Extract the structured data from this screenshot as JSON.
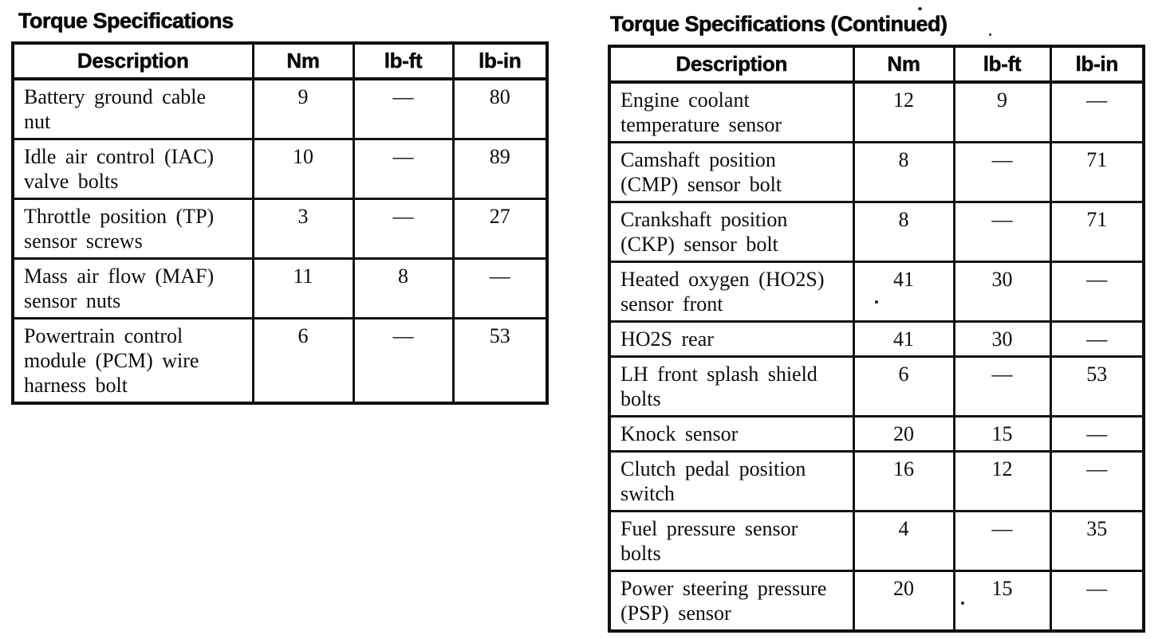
{
  "page": {
    "background": "#ffffff",
    "ink_color": "#0d0d0d"
  },
  "tables": [
    {
      "title": "Torque Specifications",
      "columns": [
        "Description",
        "Nm",
        "lb-ft",
        "lb-in"
      ],
      "rows": [
        {
          "description_lines": [
            "Battery ground cable",
            "nut"
          ],
          "nm": "9",
          "lb_ft": "—",
          "lb_in": "80"
        },
        {
          "description_lines": [
            "Idle air control (IAC)",
            "valve bolts"
          ],
          "nm": "10",
          "lb_ft": "—",
          "lb_in": "89"
        },
        {
          "description_lines": [
            "Throttle position (TP)",
            "sensor screws"
          ],
          "nm": "3",
          "lb_ft": "—",
          "lb_in": "27"
        },
        {
          "description_lines": [
            "Mass air flow (MAF)",
            "sensor nuts"
          ],
          "nm": "11",
          "lb_ft": "8",
          "lb_in": "—"
        },
        {
          "description_lines": [
            "Powertrain control",
            "module (PCM) wire",
            "harness bolt"
          ],
          "nm": "6",
          "lb_ft": "—",
          "lb_in": "53"
        }
      ]
    },
    {
      "title": "Torque Specifications (Continued)",
      "columns": [
        "Description",
        "Nm",
        "lb-ft",
        "lb-in"
      ],
      "rows": [
        {
          "description_lines": [
            "Engine coolant",
            "temperature sensor"
          ],
          "nm": "12",
          "lb_ft": "9",
          "lb_in": "—"
        },
        {
          "description_lines": [
            "Camshaft position",
            "(CMP) sensor bolt"
          ],
          "nm": "8",
          "lb_ft": "—",
          "lb_in": "71"
        },
        {
          "description_lines": [
            "Crankshaft position",
            "(CKP) sensor bolt"
          ],
          "nm": "8",
          "lb_ft": "—",
          "lb_in": "71"
        },
        {
          "description_lines": [
            "Heated oxygen (HO2S)",
            "sensor front"
          ],
          "nm": "41",
          "lb_ft": "30",
          "lb_in": "—"
        },
        {
          "description_lines": [
            "HO2S rear"
          ],
          "nm": "41",
          "lb_ft": "30",
          "lb_in": "—"
        },
        {
          "description_lines": [
            "LH front splash shield",
            "bolts"
          ],
          "nm": "6",
          "lb_ft": "—",
          "lb_in": "53"
        },
        {
          "description_lines": [
            "Knock sensor"
          ],
          "nm": "20",
          "lb_ft": "15",
          "lb_in": "—"
        },
        {
          "description_lines": [
            "Clutch pedal position",
            "switch"
          ],
          "nm": "16",
          "lb_ft": "12",
          "lb_in": "—"
        },
        {
          "description_lines": [
            "Fuel pressure sensor",
            "bolts"
          ],
          "nm": "4",
          "lb_ft": "—",
          "lb_in": "35"
        },
        {
          "description_lines": [
            "Power steering pressure",
            "(PSP) sensor"
          ],
          "nm": "20",
          "lb_ft": "15",
          "lb_in": "—"
        }
      ]
    }
  ]
}
